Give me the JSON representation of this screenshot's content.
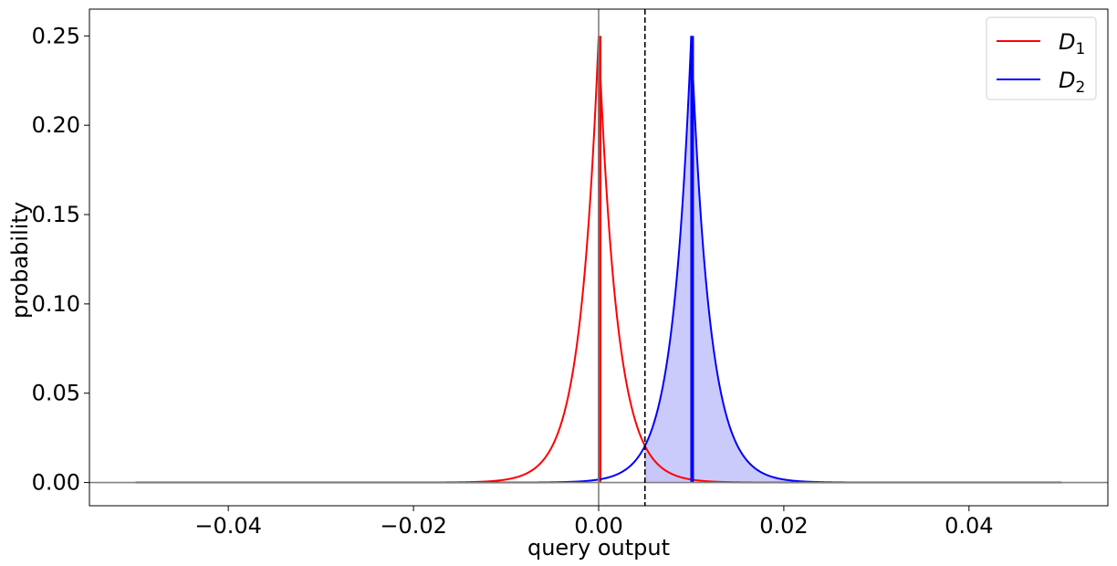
{
  "chart_data": {
    "type": "line",
    "title": "",
    "xlabel": "query output",
    "ylabel": "probability",
    "xlim": [
      -0.055,
      0.055
    ],
    "ylim": [
      -0.013,
      0.265
    ],
    "xticks": [
      -0.04,
      -0.02,
      0.0,
      0.02,
      0.04
    ],
    "xtick_labels": [
      "−0.04",
      "−0.02",
      "0.00",
      "0.02",
      "0.04"
    ],
    "yticks": [
      0.0,
      0.05,
      0.1,
      0.15,
      0.2,
      0.25
    ],
    "ytick_labels": [
      "0.00",
      "0.05",
      "0.10",
      "0.15",
      "0.20",
      "0.25"
    ],
    "x_range": [
      -0.05,
      0.05
    ],
    "threshold_x": 0.005,
    "legend_position": "top-right",
    "grid": false,
    "series": [
      {
        "name": "D1",
        "legend_base": "D",
        "legend_sub": "1",
        "color": "#ff0000",
        "distribution": "laplace",
        "center": 0.0,
        "scale": 0.002,
        "peak": 0.25,
        "fill_from_x": 0.005,
        "fill_color": "#b66bc0"
      },
      {
        "name": "D2",
        "legend_base": "D",
        "legend_sub": "2",
        "color": "#0000ff",
        "distribution": "laplace",
        "center": 0.01,
        "scale": 0.002,
        "peak": 0.25,
        "fill_from_x": 0.005,
        "fill_color": "#c8c8fb"
      }
    ]
  }
}
